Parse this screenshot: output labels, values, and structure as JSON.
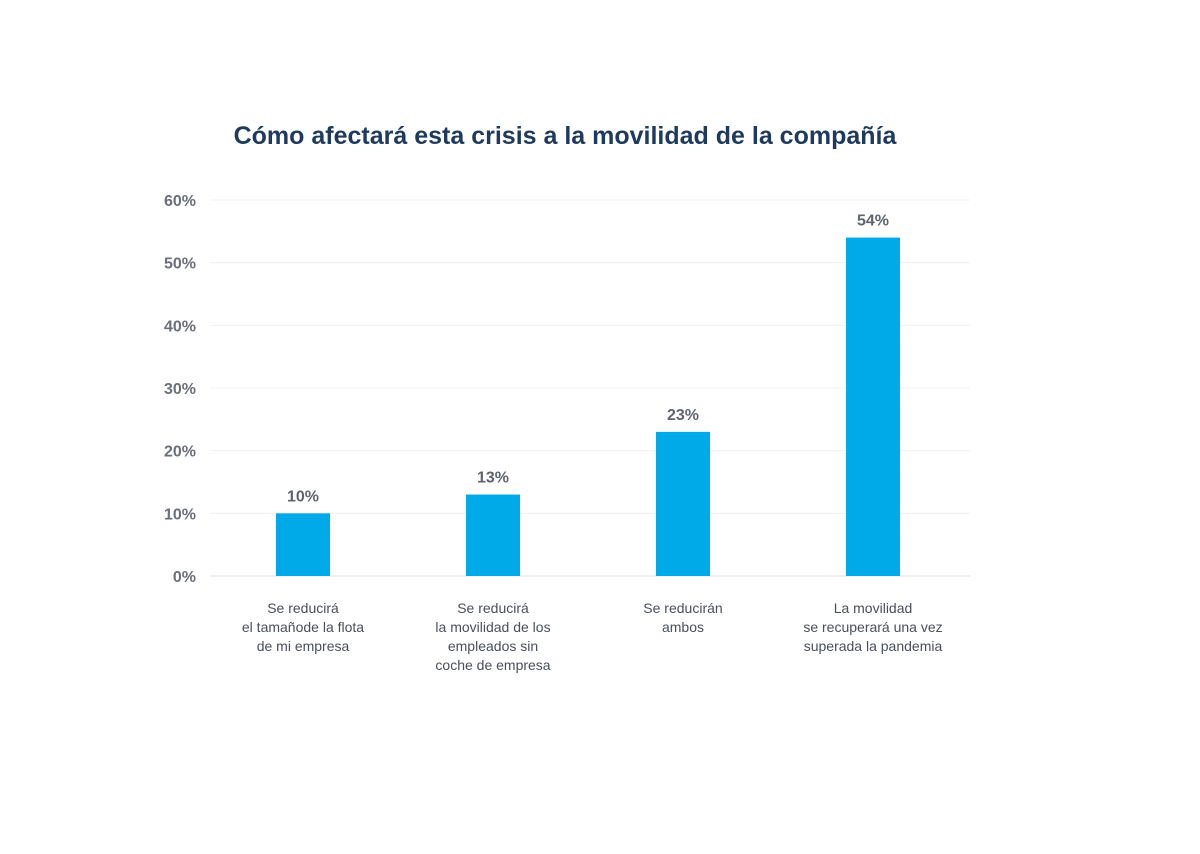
{
  "chart_data": {
    "type": "bar",
    "title": "Cómo afectará esta crisis a la movilidad de la compañía",
    "categories": [
      [
        "Se reducirá",
        "el tamañode la flota",
        "de mi empresa"
      ],
      [
        "Se reducirá",
        "la movilidad de los",
        "empleados sin",
        "coche de empresa"
      ],
      [
        "Se reducirán",
        "ambos"
      ],
      [
        "La movilidad",
        "se recuperará una vez",
        "superada la pandemia"
      ]
    ],
    "values": [
      10,
      13,
      23,
      54
    ],
    "value_labels": [
      "10%",
      "13%",
      "23%",
      "54%"
    ],
    "yticks": [
      0,
      10,
      20,
      30,
      40,
      50,
      60
    ],
    "ytick_labels": [
      "0%",
      "10%",
      "20%",
      "30%",
      "40%",
      "50%",
      "60%"
    ],
    "ylim": [
      0,
      60
    ],
    "xlabel": "",
    "ylabel": "",
    "grid": true,
    "legend": "none",
    "bar_color": "#00a9e8"
  }
}
